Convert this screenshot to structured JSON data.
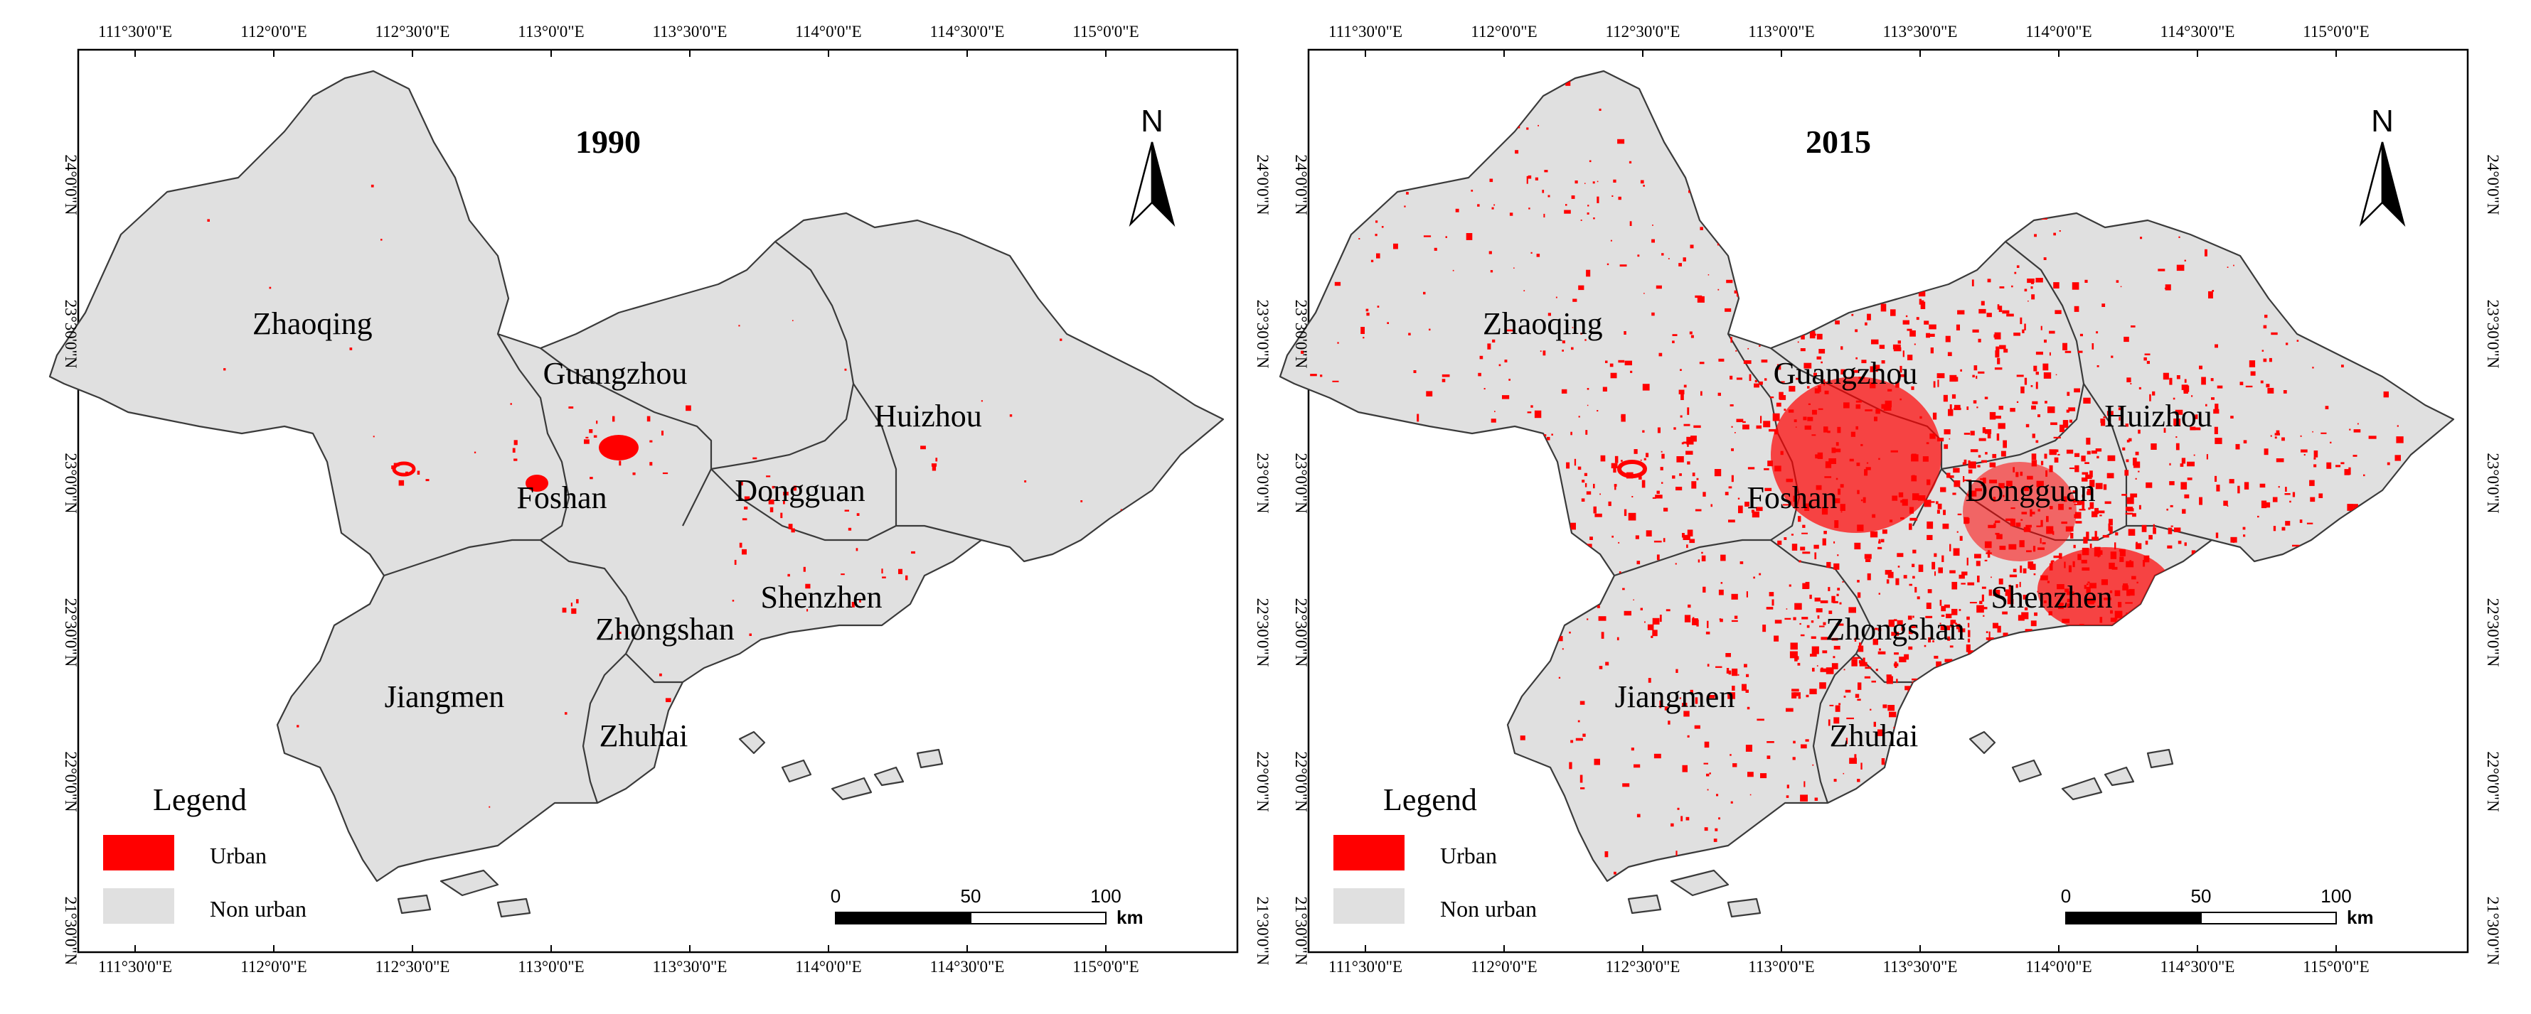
{
  "colors": {
    "urban": "#ff0000",
    "non_urban": "#e0e0e0",
    "boundary": "#3a3a3a"
  },
  "longitude_ticks": [
    "111°30'0\"E",
    "112°0'0\"E",
    "112°30'0\"E",
    "113°0'0\"E",
    "113°30'0\"E",
    "114°0'0\"E",
    "114°30'0\"E",
    "115°0'0\"E"
  ],
  "latitude_ticks": [
    "24°0'0\"N",
    "23°30'0\"N",
    "23°0'0\"N",
    "22°30'0\"N",
    "22°0'0\"N",
    "21°30'0\"N"
  ],
  "cities": [
    "Zhaoqing",
    "Guangzhou",
    "Huizhou",
    "Foshan",
    "Dongguan",
    "Shenzhen",
    "Zhongshan",
    "Jiangmen",
    "Zhuhai"
  ],
  "legend": {
    "title": "Legend",
    "urban": "Urban",
    "non_urban": "Non urban"
  },
  "scalebar": {
    "labels": [
      "0",
      "50",
      "100"
    ],
    "unit": "km"
  },
  "north_label": "N",
  "panels": [
    {
      "year": "1990",
      "urban_level": "low"
    },
    {
      "year": "2015",
      "urban_level": "high"
    }
  ]
}
